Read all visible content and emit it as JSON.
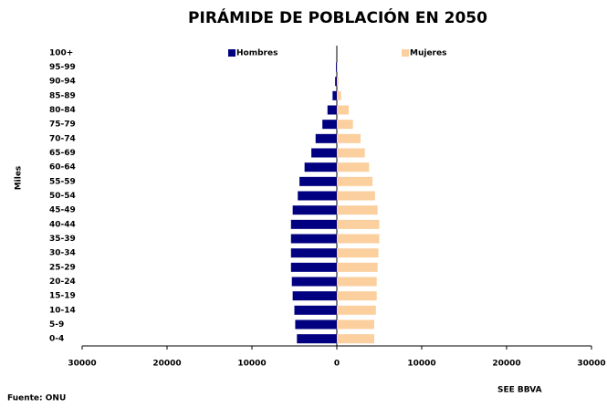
{
  "chart_data": {
    "type": "pyramid",
    "title": "PIRÁMIDE DE POBLACIÓN EN 2050",
    "y_label": "Miles",
    "source": "Fuente: ONU",
    "credit": "SEE BBVA",
    "categories": [
      "0-4",
      "5-9",
      "10-14",
      "15-19",
      "20-24",
      "25-29",
      "30-34",
      "35-39",
      "40-44",
      "45-49",
      "50-54",
      "55-59",
      "60-64",
      "65-69",
      "70-74",
      "75-79",
      "80-84",
      "85-89",
      "90-94",
      "95-99",
      "100+"
    ],
    "series": [
      {
        "name": "Hombres",
        "color": "#000080",
        "values": [
          -4700,
          -4900,
          -5000,
          -5200,
          -5300,
          -5400,
          -5400,
          -5400,
          -5400,
          -5200,
          -4600,
          -4400,
          -3800,
          -3000,
          -2500,
          -1700,
          -1100,
          -500,
          -200,
          -100,
          0
        ]
      },
      {
        "name": "Mujeres",
        "color": "#fbcf9e",
        "values": [
          4400,
          4400,
          4600,
          4700,
          4700,
          4800,
          4900,
          5000,
          5000,
          4800,
          4500,
          4200,
          3800,
          3300,
          2800,
          1900,
          1400,
          500,
          200,
          100,
          0
        ]
      }
    ],
    "xlim": [
      -30000,
      30000
    ],
    "xticks": [
      {
        "value": -30000,
        "label": "30000"
      },
      {
        "value": -20000,
        "label": "20000"
      },
      {
        "value": -10000,
        "label": "10000"
      },
      0,
      10000,
      20000,
      30000
    ],
    "negative_tick_color": "#ff0000"
  }
}
